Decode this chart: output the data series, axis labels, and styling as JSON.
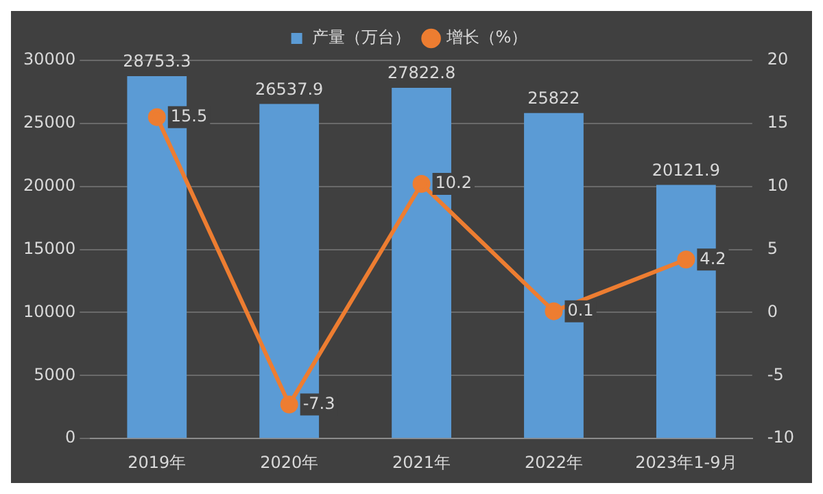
{
  "chart_data": {
    "type": "bar",
    "categories": [
      "2019年",
      "2020年",
      "2021年",
      "2022年",
      "2023年1-9月"
    ],
    "series": [
      {
        "name": "产量（万台）",
        "color": "#5b9bd5",
        "values": [
          28753.3,
          26537.9,
          27822.8,
          25822,
          20121.9
        ]
      },
      {
        "name": "增长（%）",
        "type": "line",
        "axis": "y2",
        "color": "#ed7d31",
        "values": [
          15.5,
          -7.3,
          10.2,
          0.1,
          4.2
        ]
      }
    ],
    "ylim": [
      0,
      30000
    ],
    "yticks": [
      0,
      5000,
      10000,
      15000,
      20000,
      25000,
      30000
    ],
    "y2lim": [
      -10,
      20
    ],
    "y2ticks": [
      -10,
      -5,
      0,
      5,
      10,
      15,
      20
    ],
    "grid": "y",
    "legend": "top",
    "marker": "circle",
    "line_style": "solid",
    "data_labels": true
  }
}
